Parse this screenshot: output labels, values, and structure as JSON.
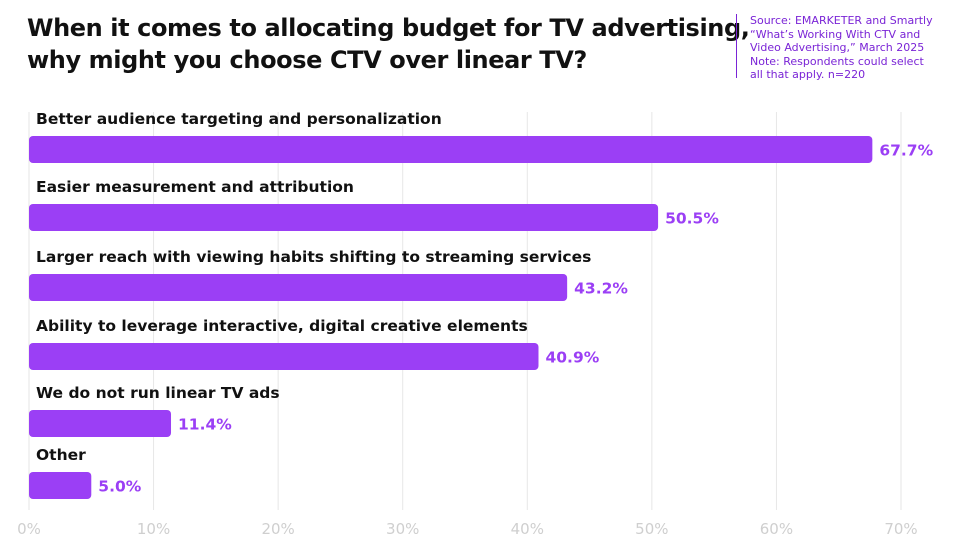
{
  "title_lines": [
    "When it comes to allocating budget for TV advertising,",
    "why might you choose CTV over linear TV?"
  ],
  "source_lines": [
    "Source: EMARKETER and Smartly",
    "“What’s Working With CTV and",
    "Video Advertising,” March 2025",
    "Note: Respondents could select",
    "all that apply. n=220"
  ],
  "colors": {
    "bar": "#9b3ff5",
    "value_label": "#9b3ff5",
    "axis_tick": "#cfcfcf",
    "grid": "#e6e6e6",
    "category_text": "#111111",
    "source_text": "#7a24d6"
  },
  "chart_data": {
    "type": "bar",
    "orientation": "horizontal",
    "categories": [
      "Better audience targeting and personalization",
      "Easier measurement and attribution",
      "Larger reach with viewing habits shifting to streaming services",
      "Ability to leverage interactive, digital creative elements",
      "We do not run linear TV ads",
      "Other"
    ],
    "values": [
      67.7,
      50.5,
      43.2,
      40.9,
      11.4,
      5.0
    ],
    "value_labels": [
      "67.7%",
      "50.5%",
      "43.2%",
      "40.9%",
      "11.4%",
      "5.0%"
    ],
    "xlim": [
      0,
      70
    ],
    "xticks": [
      0,
      10,
      20,
      30,
      40,
      50,
      60,
      70
    ],
    "xtick_labels": [
      "0%",
      "10%",
      "20%",
      "30%",
      "40%",
      "50%",
      "60%",
      "70%"
    ],
    "grid": true,
    "title": "When it comes to allocating budget for TV advertising, why might you choose CTV over linear TV?",
    "xlabel": "",
    "ylabel": ""
  }
}
